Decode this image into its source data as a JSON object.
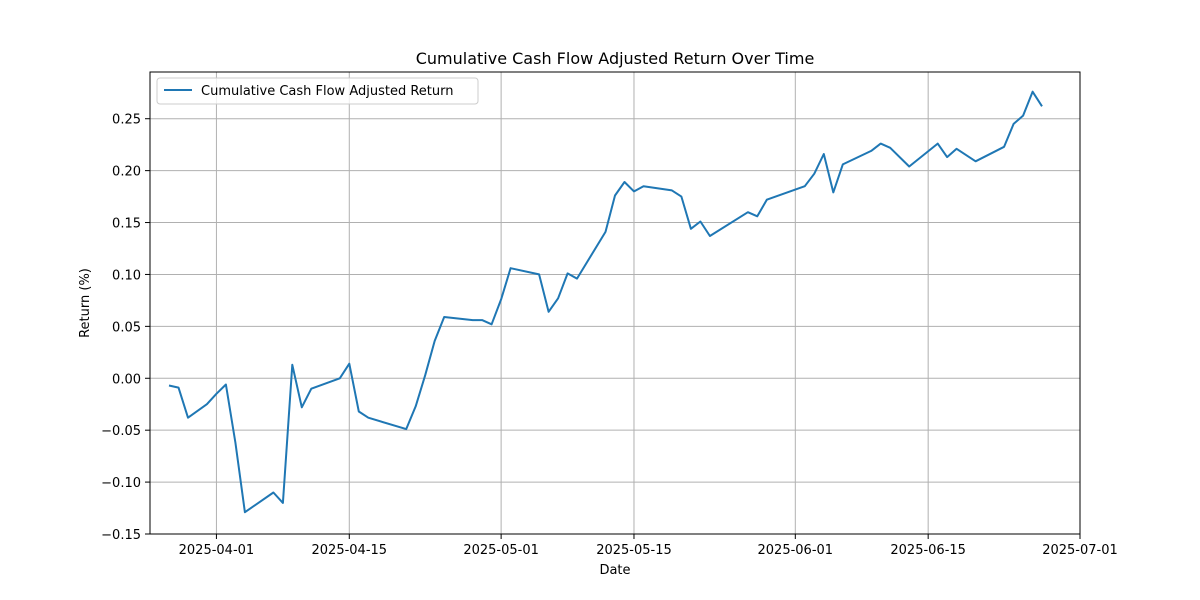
{
  "chart_data": {
    "type": "line",
    "title": "Cumulative Cash Flow Adjusted Return Over Time",
    "xlabel": "Date",
    "ylabel": "Return (%)",
    "x_ticks": [
      "2025-04-01",
      "2025-04-15",
      "2025-05-01",
      "2025-05-15",
      "2025-06-01",
      "2025-06-15",
      "2025-07-01"
    ],
    "y_ticks": [
      "0.25",
      "0.20",
      "0.15",
      "0.10",
      "0.05",
      "0.00",
      "−0.05",
      "−0.10",
      "−0.15"
    ],
    "y_tick_values": [
      0.25,
      0.2,
      0.15,
      0.1,
      0.05,
      0.0,
      -0.05,
      -0.1,
      -0.15
    ],
    "xlim": [
      "2025-03-25",
      "2025-07-01"
    ],
    "ylim": [
      -0.15,
      0.295
    ],
    "grid": true,
    "legend_position": "top-left",
    "color": "#1f77b4",
    "series": [
      {
        "name": "Cumulative Cash Flow Adjusted Return",
        "x": [
          "2025-03-27",
          "2025-03-28",
          "2025-03-29",
          "2025-03-31",
          "2025-04-01",
          "2025-04-02",
          "2025-04-03",
          "2025-04-04",
          "2025-04-07",
          "2025-04-08",
          "2025-04-09",
          "2025-04-10",
          "2025-04-11",
          "2025-04-14",
          "2025-04-15",
          "2025-04-16",
          "2025-04-17",
          "2025-04-21",
          "2025-04-22",
          "2025-04-23",
          "2025-04-24",
          "2025-04-25",
          "2025-04-28",
          "2025-04-29",
          "2025-04-30",
          "2025-05-01",
          "2025-05-02",
          "2025-05-05",
          "2025-05-06",
          "2025-05-07",
          "2025-05-08",
          "2025-05-09",
          "2025-05-12",
          "2025-05-13",
          "2025-05-14",
          "2025-05-15",
          "2025-05-16",
          "2025-05-19",
          "2025-05-20",
          "2025-05-21",
          "2025-05-22",
          "2025-05-23",
          "2025-05-27",
          "2025-05-28",
          "2025-05-29",
          "2025-06-02",
          "2025-06-03",
          "2025-06-04",
          "2025-06-05",
          "2025-06-06",
          "2025-06-09",
          "2025-06-10",
          "2025-06-11",
          "2025-06-13",
          "2025-06-16",
          "2025-06-17",
          "2025-06-18",
          "2025-06-20",
          "2025-06-23",
          "2025-06-24",
          "2025-06-25",
          "2025-06-26",
          "2025-06-27"
        ],
        "values": [
          -0.007,
          -0.009,
          -0.038,
          -0.025,
          -0.015,
          -0.006,
          -0.062,
          -0.129,
          -0.11,
          -0.12,
          0.013,
          -0.028,
          -0.01,
          0.0,
          0.014,
          -0.032,
          -0.038,
          -0.049,
          -0.027,
          0.003,
          0.036,
          0.059,
          0.056,
          0.056,
          0.052,
          0.076,
          0.106,
          0.1,
          0.064,
          0.077,
          0.101,
          0.096,
          0.141,
          0.176,
          0.189,
          0.18,
          0.185,
          0.181,
          0.175,
          0.144,
          0.151,
          0.137,
          0.16,
          0.156,
          0.172,
          0.185,
          0.197,
          0.216,
          0.179,
          0.206,
          0.219,
          0.226,
          0.222,
          0.204,
          0.226,
          0.213,
          0.221,
          0.209,
          0.223,
          0.245,
          0.253,
          0.276,
          0.262
        ]
      }
    ]
  }
}
